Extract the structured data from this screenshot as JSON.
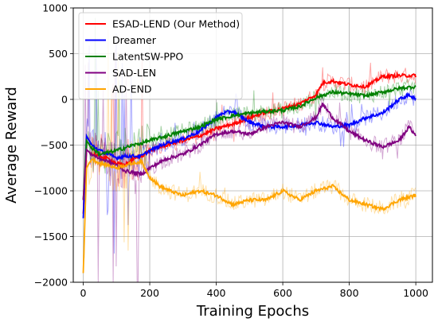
{
  "chart_data": {
    "type": "line",
    "title": "",
    "xlabel": "Training Epochs",
    "ylabel": "Average Reward",
    "xlim": [
      -30,
      1050
    ],
    "ylim": [
      -2000,
      1000
    ],
    "xticks": [
      "0",
      "200",
      "400",
      "600",
      "800",
      "1000"
    ],
    "yticks": [
      "−2000",
      "−1500",
      "−1000",
      "−500",
      "0",
      "500",
      "1000"
    ],
    "grid": true,
    "legend_position": "top-left",
    "raw_series_shown": "faint noisy raw curves behind each smoothed line",
    "series": [
      {
        "name": "ESAD-LEND (Our Method)",
        "color": "#ff0000",
        "x": [
          0,
          10,
          25,
          50,
          75,
          100,
          125,
          150,
          175,
          200,
          250,
          300,
          350,
          400,
          450,
          500,
          550,
          600,
          650,
          700,
          720,
          750,
          800,
          850,
          900,
          950,
          1000
        ],
        "values": [
          -1250,
          -550,
          -600,
          -620,
          -650,
          -700,
          -720,
          -650,
          -620,
          -560,
          -500,
          -450,
          -400,
          -320,
          -270,
          -200,
          -140,
          -100,
          -50,
          50,
          180,
          200,
          160,
          140,
          250,
          260,
          260
        ]
      },
      {
        "name": "Dreamer",
        "color": "#0000ff",
        "x": [
          0,
          10,
          25,
          50,
          75,
          100,
          125,
          150,
          175,
          200,
          250,
          300,
          350,
          400,
          420,
          450,
          500,
          550,
          600,
          650,
          700,
          750,
          800,
          850,
          900,
          950,
          980,
          1000
        ],
        "values": [
          -1300,
          -400,
          -500,
          -560,
          -600,
          -640,
          -620,
          -620,
          -620,
          -560,
          -480,
          -430,
          -350,
          -200,
          -150,
          -130,
          -250,
          -300,
          -300,
          -280,
          -250,
          -300,
          -280,
          -200,
          -150,
          0,
          50,
          0
        ]
      },
      {
        "name": "LatentSW-PPO",
        "color": "#008000",
        "x": [
          0,
          10,
          25,
          50,
          75,
          100,
          125,
          150,
          175,
          200,
          250,
          300,
          350,
          400,
          450,
          500,
          550,
          600,
          650,
          700,
          750,
          800,
          850,
          900,
          950,
          1000
        ],
        "values": [
          -1100,
          -450,
          -530,
          -600,
          -580,
          -560,
          -530,
          -500,
          -480,
          -450,
          -400,
          -350,
          -300,
          -220,
          -180,
          -150,
          -130,
          -120,
          -80,
          20,
          80,
          60,
          40,
          80,
          120,
          140
        ]
      },
      {
        "name": "SAD-LEN",
        "color": "#800080",
        "x": [
          0,
          10,
          25,
          50,
          75,
          100,
          125,
          150,
          175,
          200,
          250,
          300,
          350,
          400,
          450,
          500,
          550,
          600,
          650,
          700,
          720,
          750,
          800,
          850,
          900,
          950,
          980,
          1000
        ],
        "values": [
          -1100,
          -550,
          -600,
          -650,
          -680,
          -720,
          -780,
          -800,
          -820,
          -750,
          -650,
          -600,
          -500,
          -380,
          -350,
          -380,
          -300,
          -250,
          -300,
          -200,
          -50,
          -200,
          -350,
          -450,
          -520,
          -450,
          -300,
          -400
        ]
      },
      {
        "name": "AD-END",
        "color": "#ffa500",
        "x": [
          0,
          10,
          25,
          50,
          75,
          100,
          125,
          150,
          175,
          200,
          230,
          260,
          300,
          350,
          400,
          450,
          500,
          550,
          600,
          650,
          700,
          750,
          800,
          850,
          900,
          950,
          1000
        ],
        "values": [
          -1900,
          -750,
          -650,
          -700,
          -720,
          -750,
          -720,
          -700,
          -680,
          -850,
          -950,
          -1000,
          -1050,
          -1000,
          -1050,
          -1150,
          -1100,
          -1100,
          -1000,
          -1100,
          -1000,
          -950,
          -1100,
          -1150,
          -1200,
          -1100,
          -1050
        ]
      }
    ]
  }
}
